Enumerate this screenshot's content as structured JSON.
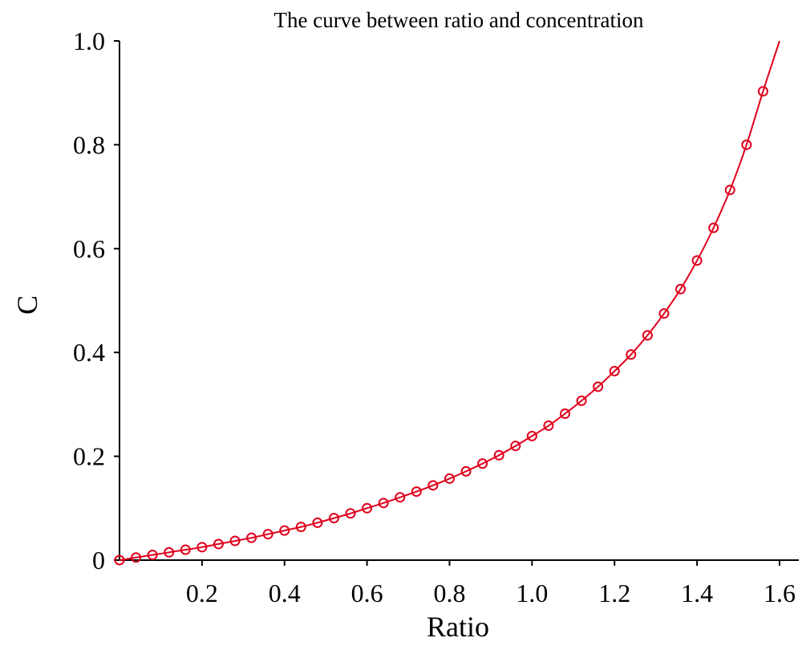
{
  "chart_data": {
    "type": "line",
    "title": "The curve between ratio and concentration",
    "xlabel": "Ratio",
    "ylabel": "C",
    "xlim": [
      0,
      1.6
    ],
    "ylim": [
      0,
      1.0
    ],
    "x_ticks": [
      0.2,
      0.4,
      0.6,
      0.8,
      1.0,
      1.2,
      1.4,
      1.6
    ],
    "x_tick_labels": [
      "0.2",
      "0.4",
      "0.6",
      "0.8",
      "1.0",
      "1.2",
      "1.4",
      "1.6"
    ],
    "y_ticks": [
      0,
      0.2,
      0.4,
      0.6,
      0.8,
      1.0
    ],
    "y_tick_labels": [
      "0",
      "0.2",
      "0.4",
      "0.6",
      "0.8",
      "1.0"
    ],
    "grid": false,
    "legend": "none",
    "line_color": "#e0001b",
    "series": [
      {
        "type": "fitted-curve",
        "x": [
          0,
          0.04,
          0.08,
          0.12,
          0.16,
          0.2,
          0.24,
          0.28,
          0.32,
          0.36,
          0.4,
          0.44,
          0.48,
          0.52,
          0.56,
          0.6,
          0.64,
          0.68,
          0.72,
          0.76,
          0.8,
          0.84,
          0.88,
          0.92,
          0.96,
          1.0,
          1.04,
          1.08,
          1.12,
          1.16,
          1.2,
          1.24,
          1.28,
          1.32,
          1.36,
          1.4,
          1.44,
          1.48,
          1.52,
          1.56,
          1.6
        ],
        "y": [
          0,
          0.005,
          0.01,
          0.015,
          0.02,
          0.025,
          0.031,
          0.037,
          0.043,
          0.05,
          0.057,
          0.064,
          0.072,
          0.081,
          0.09,
          0.1,
          0.11,
          0.121,
          0.132,
          0.144,
          0.157,
          0.171,
          0.186,
          0.202,
          0.22,
          0.239,
          0.259,
          0.282,
          0.307,
          0.334,
          0.364,
          0.396,
          0.433,
          0.475,
          0.522,
          0.577,
          0.64,
          0.713,
          0.8,
          0.903,
          1.0
        ]
      },
      {
        "type": "markers",
        "marker": "open-circle",
        "x": [
          0,
          0.04,
          0.08,
          0.12,
          0.16,
          0.2,
          0.24,
          0.28,
          0.32,
          0.36,
          0.4,
          0.44,
          0.48,
          0.52,
          0.56,
          0.6,
          0.64,
          0.68,
          0.72,
          0.76,
          0.8,
          0.84,
          0.88,
          0.92,
          0.96,
          1.0,
          1.04,
          1.08,
          1.12,
          1.16,
          1.2,
          1.24,
          1.28,
          1.32,
          1.36,
          1.4,
          1.44,
          1.48,
          1.52,
          1.56
        ],
        "y": [
          0,
          0.005,
          0.01,
          0.015,
          0.02,
          0.025,
          0.031,
          0.037,
          0.043,
          0.05,
          0.057,
          0.064,
          0.072,
          0.081,
          0.09,
          0.1,
          0.11,
          0.121,
          0.132,
          0.144,
          0.157,
          0.171,
          0.186,
          0.202,
          0.22,
          0.239,
          0.259,
          0.282,
          0.307,
          0.334,
          0.364,
          0.396,
          0.433,
          0.475,
          0.522,
          0.577,
          0.64,
          0.713,
          0.8,
          0.903
        ]
      }
    ]
  }
}
